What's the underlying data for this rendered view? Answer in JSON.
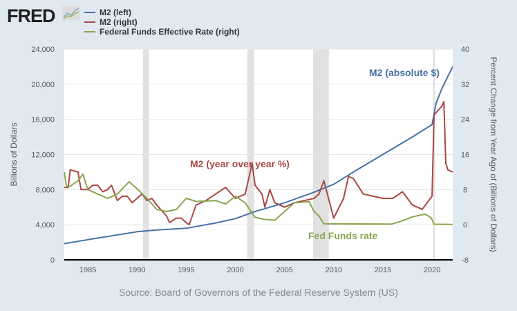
{
  "logo": "FRED",
  "legend": [
    {
      "label": "M2 (left)",
      "color": "#4572a7"
    },
    {
      "label": "M2 (right)",
      "color": "#aa4643"
    },
    {
      "label": "Federal Funds Effective Rate (right)",
      "color": "#89a54e"
    }
  ],
  "source": "Source: Board of Governors of the Federal Reserve System (US)",
  "chart_data": {
    "type": "line",
    "ylabel": "Billions of Dollars",
    "y2label": "Percent Change from Year Ago of (Billions of Dollars)",
    "xlim": [
      1982.6,
      2022.1
    ],
    "ylim": [
      0,
      24000
    ],
    "y2lim": [
      -8,
      40
    ],
    "xticks": [
      "1985",
      "1990",
      "1995",
      "2000",
      "2005",
      "2010",
      "2015",
      "2020"
    ],
    "yticks": [
      "0",
      "4,000",
      "8,000",
      "12,000",
      "16,000",
      "20,000",
      "24,000"
    ],
    "y2ticks": [
      "-8",
      "0",
      "8",
      "16",
      "24",
      "32",
      "40"
    ],
    "recessions": [
      [
        1990.6,
        1991.2
      ],
      [
        2001.2,
        2001.9
      ],
      [
        2007.9,
        2009.5
      ],
      [
        2020.1,
        2020.3
      ]
    ],
    "annotations": [
      {
        "text": "M2 (absolute $)",
        "color": "#4572a7"
      },
      {
        "text": "M2 (year over year %)",
        "color": "#aa4643"
      },
      {
        "text": "Fed Funds rate",
        "color": "#89a54e"
      }
    ],
    "series": [
      {
        "name": "M2 (left)",
        "axis": "left",
        "color": "#4572a7",
        "x": [
          1982.6,
          1985,
          1990,
          1992,
          1995,
          1998,
          2000,
          2002,
          2005,
          2008,
          2010,
          2012,
          2015,
          2018,
          2020.0,
          2020.4,
          2021,
          2022.1
        ],
        "y": [
          1850,
          2300,
          3200,
          3400,
          3600,
          4200,
          4700,
          5500,
          6500,
          7700,
          8600,
          10000,
          12000,
          14000,
          15400,
          17800,
          19500,
          22000
        ]
      },
      {
        "name": "M2 (right)",
        "axis": "right",
        "color": "#aa4643",
        "x": [
          1982.6,
          1983,
          1983.2,
          1984,
          1984.3,
          1985,
          1985.5,
          1986,
          1986.5,
          1987,
          1987.4,
          1988,
          1988.5,
          1989,
          1989.5,
          1990,
          1990.5,
          1991,
          1991.5,
          1992,
          1993,
          1993.3,
          1994,
          1994.5,
          1995,
          1995.3,
          1996,
          1997,
          1998,
          1999,
          2000,
          2001,
          2001.7,
          2002,
          2002.7,
          2003,
          2003.5,
          2004,
          2005,
          2006,
          2007,
          2008,
          2008.5,
          2009,
          2010,
          2011,
          2011.5,
          2012,
          2013,
          2014,
          2015,
          2016,
          2017,
          2018,
          2019,
          2019.5,
          2020,
          2020.2,
          2021,
          2021.2,
          2021.4,
          2021.6,
          2022.1
        ],
        "y": [
          8.5,
          8.5,
          12.5,
          12,
          8,
          8,
          9,
          9,
          7.5,
          8,
          9,
          5.5,
          6.5,
          6.5,
          5,
          6,
          7,
          5.5,
          6,
          4.5,
          2,
          0.5,
          1.5,
          1.5,
          0.5,
          0,
          4.5,
          5.5,
          7,
          8.5,
          6,
          7,
          14,
          9,
          7,
          4,
          8,
          5,
          4,
          5,
          5.5,
          6,
          7,
          10,
          1.5,
          6,
          11,
          10.5,
          7,
          6.5,
          6,
          6,
          7.5,
          4.5,
          3.5,
          5,
          6.5,
          25,
          27,
          28,
          14,
          12.5,
          12
        ]
      },
      {
        "name": "Federal Funds Effective Rate (right)",
        "axis": "right",
        "color": "#89a54e",
        "x": [
          1982.6,
          1982.8,
          1983,
          1984,
          1984.5,
          1985,
          1986,
          1987,
          1987.5,
          1988,
          1989.2,
          1990,
          1991,
          1992,
          1993,
          1994,
          1995,
          1996,
          1998,
          1999,
          2000,
          2001,
          2002,
          2003,
          2004,
          2005,
          2006,
          2007.5,
          2008,
          2008.5,
          2009,
          2015.9,
          2017,
          2018,
          2019.3,
          2019.9,
          2020.2,
          2022.1
        ],
        "y": [
          12,
          9,
          8.5,
          10,
          11.5,
          8,
          7,
          6,
          6.5,
          7,
          9.8,
          8.2,
          6,
          3.5,
          3,
          3.5,
          6,
          5.3,
          5.5,
          4.7,
          6.5,
          5,
          1.7,
          1.2,
          1.0,
          3,
          5,
          5.25,
          3,
          2,
          0.2,
          0.15,
          0.9,
          1.8,
          2.4,
          1.6,
          0.1,
          0.08
        ]
      }
    ]
  }
}
